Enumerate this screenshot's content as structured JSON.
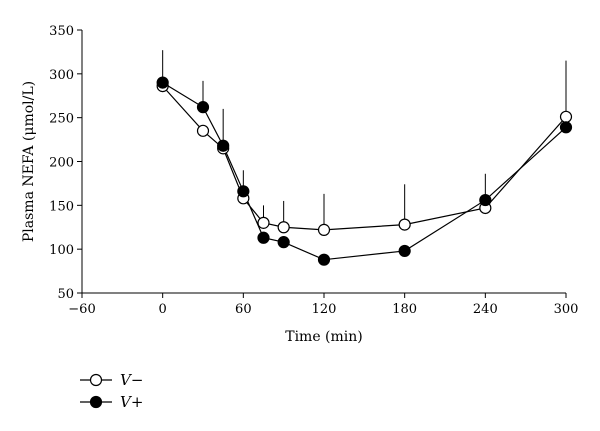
{
  "chart_data": {
    "type": "line",
    "title": "",
    "xlabel": "Time (min)",
    "ylabel": "Plasma NEFA (μmol/L)",
    "xlim": [
      -60,
      300
    ],
    "ylim": [
      50,
      350
    ],
    "xticks": [
      -60,
      0,
      60,
      120,
      180,
      240,
      300
    ],
    "yticks": [
      50,
      100,
      150,
      200,
      250,
      300,
      350
    ],
    "xtick_labels": [
      "−60",
      "0",
      "60",
      "120",
      "180",
      "240",
      "300"
    ],
    "ytick_labels": [
      "50",
      "100",
      "150",
      "200",
      "250",
      "300",
      "350"
    ],
    "grid": false,
    "legend_position": "bottom-left",
    "series": [
      {
        "name": "V−",
        "marker": "open-circle",
        "x": [
          0,
          30,
          45,
          60,
          75,
          90,
          120,
          180,
          240,
          300
        ],
        "y": [
          286,
          235,
          215,
          158,
          130,
          125,
          122,
          128,
          147,
          251
        ],
        "error_upper": [
          null,
          null,
          null,
          null,
          150,
          155,
          163,
          174,
          186,
          315
        ]
      },
      {
        "name": "V+",
        "marker": "filled-circle",
        "x": [
          0,
          30,
          45,
          60,
          75,
          90,
          120,
          180,
          240,
          300
        ],
        "y": [
          290,
          262,
          218,
          166,
          113,
          108,
          88,
          98,
          156,
          239
        ],
        "error_upper": [
          327,
          292,
          260,
          190,
          null,
          null,
          null,
          null,
          null,
          null
        ]
      }
    ]
  }
}
